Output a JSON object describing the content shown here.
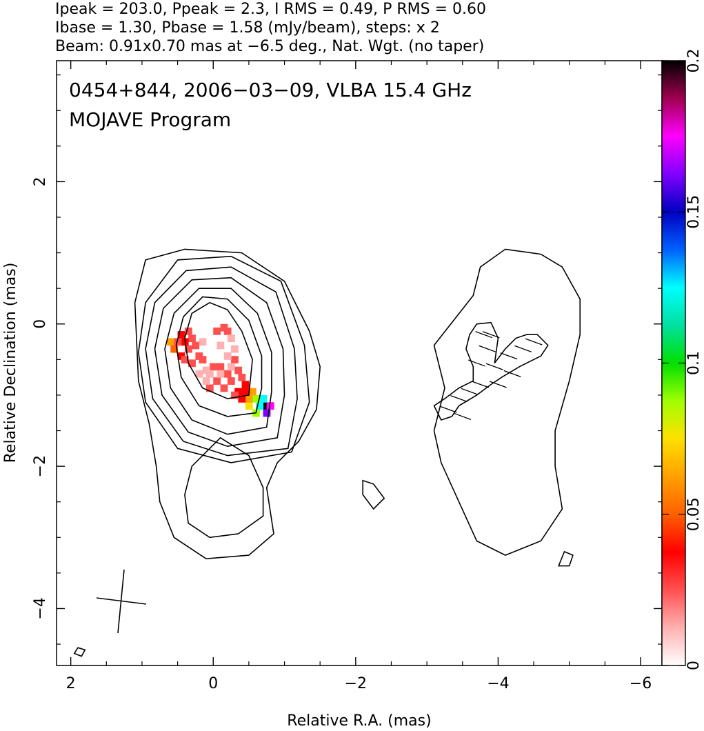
{
  "chart_data": {
    "type": "heatmap",
    "header_lines": [
      "Ipeak = 203.0, Ppeak = 2.3, I RMS = 0.49, P RMS = 0.60",
      "Ibase = 1.30, Pbase = 1.58 (mJy/beam), steps: x 2",
      "Beam: 0.91x0.70 mas at −6.5 deg., Nat. Wgt. (no taper)"
    ],
    "annotation_lines": [
      "0454+844, 2006−03−09, VLBA 15.4 GHz",
      "MOJAVE Program"
    ],
    "xlabel": "Relative R.A. (mas)",
    "ylabel": "Relative Declination (mas)",
    "xlim": [
      2.2,
      -6.3
    ],
    "ylim": [
      -4.8,
      3.7
    ],
    "x_ticks": [
      {
        "value": 2,
        "label": "2"
      },
      {
        "value": 0,
        "label": "0"
      },
      {
        "value": -2,
        "label": "−2"
      },
      {
        "value": -4,
        "label": "−4"
      },
      {
        "value": -6,
        "label": "−6"
      }
    ],
    "y_ticks": [
      {
        "value": 2,
        "label": "2"
      },
      {
        "value": 0,
        "label": "0"
      },
      {
        "value": -2,
        "label": "−2"
      },
      {
        "value": -4,
        "label": "−4"
      }
    ],
    "colorbar": {
      "range": [
        0,
        0.2
      ],
      "ticks": [
        {
          "value": 0,
          "label": "0"
        },
        {
          "value": 0.05,
          "label": "0.05"
        },
        {
          "value": 0.1,
          "label": "0.1"
        },
        {
          "value": 0.15,
          "label": "0.15"
        },
        {
          "value": 0.2,
          "label": "0.2"
        }
      ],
      "colors": [
        "#ffffff",
        "#ffb0b0",
        "#ff5050",
        "#ff0000",
        "#ff6000",
        "#ffa000",
        "#ffe000",
        "#a0ff00",
        "#00e000",
        "#00e0a0",
        "#00ffff",
        "#0060ff",
        "#0000c0",
        "#8000ff",
        "#ff00ff",
        "#a00050",
        "#000000"
      ]
    },
    "contours": [
      [
        [
          -0.5,
          -1.0
        ],
        [
          -0.2,
          -1.05
        ],
        [
          0.15,
          -0.9
        ],
        [
          0.35,
          -0.55
        ],
        [
          0.4,
          -0.2
        ],
        [
          0.3,
          0.15
        ],
        [
          0.05,
          0.3
        ],
        [
          -0.2,
          0.2
        ],
        [
          -0.4,
          -0.1
        ],
        [
          -0.55,
          -0.5
        ],
        [
          -0.5,
          -1.0
        ]
      ],
      [
        [
          -0.6,
          -1.25
        ],
        [
          -0.2,
          -1.3
        ],
        [
          0.2,
          -1.15
        ],
        [
          0.45,
          -0.75
        ],
        [
          0.52,
          -0.3
        ],
        [
          0.42,
          0.1
        ],
        [
          0.15,
          0.38
        ],
        [
          -0.2,
          0.35
        ],
        [
          -0.5,
          0.05
        ],
        [
          -0.68,
          -0.45
        ],
        [
          -0.68,
          -0.9
        ],
        [
          -0.6,
          -1.25
        ]
      ],
      [
        [
          -0.75,
          -1.45
        ],
        [
          -0.2,
          -1.55
        ],
        [
          0.3,
          -1.35
        ],
        [
          0.6,
          -0.9
        ],
        [
          0.68,
          -0.35
        ],
        [
          0.55,
          0.15
        ],
        [
          0.2,
          0.5
        ],
        [
          -0.25,
          0.5
        ],
        [
          -0.62,
          0.15
        ],
        [
          -0.82,
          -0.4
        ],
        [
          -0.82,
          -0.95
        ],
        [
          -0.75,
          -1.45
        ]
      ],
      [
        [
          -0.9,
          -1.6
        ],
        [
          -0.2,
          -1.72
        ],
        [
          0.35,
          -1.52
        ],
        [
          0.72,
          -1.0
        ],
        [
          0.82,
          -0.35
        ],
        [
          0.7,
          0.22
        ],
        [
          0.3,
          0.62
        ],
        [
          -0.25,
          0.65
        ],
        [
          -0.75,
          0.3
        ],
        [
          -0.98,
          -0.35
        ],
        [
          -1.0,
          -1.0
        ],
        [
          -0.9,
          -1.6
        ]
      ],
      [
        [
          -1.05,
          -1.75
        ],
        [
          -0.2,
          -1.85
        ],
        [
          0.42,
          -1.65
        ],
        [
          0.85,
          -1.05
        ],
        [
          0.95,
          -0.35
        ],
        [
          0.82,
          0.3
        ],
        [
          0.38,
          0.75
        ],
        [
          -0.25,
          0.8
        ],
        [
          -0.88,
          0.45
        ],
        [
          -1.14,
          -0.35
        ],
        [
          -1.18,
          -1.05
        ],
        [
          -1.05,
          -1.75
        ]
      ],
      [
        [
          -1.1,
          -1.8
        ],
        [
          -0.25,
          -1.95
        ],
        [
          0.5,
          -1.75
        ],
        [
          0.95,
          -1.1
        ],
        [
          1.05,
          -0.4
        ],
        [
          0.95,
          0.3
        ],
        [
          0.5,
          0.9
        ],
        [
          -0.25,
          0.95
        ],
        [
          -0.95,
          0.6
        ],
        [
          -1.28,
          -0.3
        ],
        [
          -1.35,
          -1.1
        ],
        [
          -1.1,
          -1.8
        ]
      ],
      [
        [
          1.05,
          -0.8
        ],
        [
          1.1,
          0.3
        ],
        [
          0.95,
          0.9
        ],
        [
          0.4,
          1.05
        ],
        [
          -0.4,
          1.0
        ],
        [
          -1.0,
          0.6
        ],
        [
          -1.35,
          -0.1
        ],
        [
          -1.5,
          -0.6
        ],
        [
          -1.45,
          -1.2
        ],
        [
          -1.2,
          -1.65
        ],
        [
          -0.9,
          -1.95
        ],
        [
          -0.75,
          -2.3
        ],
        [
          -0.85,
          -2.95
        ],
        [
          -0.5,
          -3.25
        ],
        [
          0.1,
          -3.3
        ],
        [
          0.55,
          -3.0
        ],
        [
          0.75,
          -2.5
        ],
        [
          0.8,
          -2.0
        ],
        [
          0.9,
          -1.4
        ],
        [
          1.05,
          -0.8
        ]
      ],
      [
        [
          -0.1,
          -1.6
        ],
        [
          -0.5,
          -1.85
        ],
        [
          -0.7,
          -2.3
        ],
        [
          -0.7,
          -2.7
        ],
        [
          -0.35,
          -2.95
        ],
        [
          0.05,
          -3.0
        ],
        [
          0.35,
          -2.8
        ],
        [
          0.4,
          -2.4
        ],
        [
          0.3,
          -2.0
        ],
        [
          -0.1,
          -1.6
        ]
      ],
      [
        [
          -3.2,
          -1.95
        ],
        [
          -3.1,
          -1.5
        ],
        [
          -3.25,
          -0.9
        ],
        [
          -3.1,
          -0.3
        ],
        [
          -3.65,
          0.4
        ],
        [
          -3.75,
          0.8
        ],
        [
          -4.1,
          1.05
        ],
        [
          -4.6,
          0.98
        ],
        [
          -4.9,
          0.8
        ],
        [
          -5.15,
          0.35
        ],
        [
          -5.15,
          -0.15
        ],
        [
          -5.0,
          -0.8
        ],
        [
          -4.8,
          -1.5
        ],
        [
          -4.8,
          -2.0
        ],
        [
          -4.9,
          -2.6
        ],
        [
          -4.6,
          -3.05
        ],
        [
          -4.1,
          -3.25
        ],
        [
          -3.7,
          -3.05
        ],
        [
          -3.45,
          -2.5
        ],
        [
          -3.2,
          -1.95
        ]
      ],
      [
        [
          -2.1,
          -2.2
        ],
        [
          -2.25,
          -2.25
        ],
        [
          -2.4,
          -2.45
        ],
        [
          -2.25,
          -2.6
        ],
        [
          -2.1,
          -2.4
        ],
        [
          -2.1,
          -2.2
        ]
      ],
      [
        [
          -4.93,
          -3.2
        ],
        [
          -5.05,
          -3.25
        ],
        [
          -5.0,
          -3.4
        ],
        [
          -4.85,
          -3.4
        ],
        [
          -4.93,
          -3.2
        ]
      ],
      [
        [
          1.9,
          -4.55
        ],
        [
          1.8,
          -4.58
        ],
        [
          1.85,
          -4.67
        ],
        [
          1.95,
          -4.63
        ],
        [
          1.9,
          -4.55
        ]
      ]
    ],
    "polarization_region": [
      [
        -3.1,
        -1.15
      ],
      [
        -3.25,
        -1.05
      ],
      [
        -3.45,
        -0.9
      ],
      [
        -3.65,
        -0.8
      ],
      [
        -3.65,
        -0.6
      ],
      [
        -3.55,
        -0.35
      ],
      [
        -3.6,
        -0.15
      ],
      [
        -3.7,
        0.0
      ],
      [
        -3.9,
        0.02
      ],
      [
        -4.0,
        -0.2
      ],
      [
        -3.95,
        -0.55
      ],
      [
        -4.1,
        -0.35
      ],
      [
        -4.25,
        -0.2
      ],
      [
        -4.4,
        -0.15
      ],
      [
        -4.55,
        -0.15
      ],
      [
        -4.7,
        -0.3
      ],
      [
        -4.6,
        -0.45
      ],
      [
        -4.3,
        -0.6
      ],
      [
        -4.05,
        -0.75
      ],
      [
        -3.9,
        -0.85
      ],
      [
        -3.7,
        -1.0
      ],
      [
        -3.45,
        -1.15
      ],
      [
        -3.35,
        -1.3
      ],
      [
        -3.2,
        -1.35
      ],
      [
        -3.1,
        -1.15
      ]
    ],
    "evpa_vectors": [
      [
        -3.3,
        -1.2
      ],
      [
        -3.45,
        -1.05
      ],
      [
        -3.6,
        -0.95
      ],
      [
        -3.5,
        -1.3
      ],
      [
        -3.75,
        -0.85
      ],
      [
        -3.8,
        -0.15
      ],
      [
        -3.85,
        -0.35
      ],
      [
        -3.7,
        -0.55
      ],
      [
        -3.95,
        -0.6
      ],
      [
        -4.15,
        -0.45
      ],
      [
        -4.35,
        -0.35
      ],
      [
        -4.5,
        -0.25
      ],
      [
        -4.2,
        -0.7
      ],
      [
        -4.0,
        -0.85
      ],
      [
        -3.9,
        -0.15
      ]
    ],
    "fpol_pixels": [
      {
        "x": -0.7,
        "y": -1.15,
        "value": 0.2
      },
      {
        "x": -0.8,
        "y": -1.15,
        "value": 0.17
      },
      {
        "x": -0.75,
        "y": -1.25,
        "value": 0.16
      },
      {
        "x": -0.7,
        "y": -1.05,
        "value": 0.13
      },
      {
        "x": -0.65,
        "y": -1.15,
        "value": 0.12
      },
      {
        "x": -0.6,
        "y": -1.25,
        "value": 0.09
      },
      {
        "x": -0.6,
        "y": -1.05,
        "value": 0.085
      },
      {
        "x": -0.55,
        "y": -0.95,
        "value": 0.065
      },
      {
        "x": -0.5,
        "y": -1.15,
        "value": 0.075
      },
      {
        "x": -0.5,
        "y": -1.05,
        "value": 0.06
      },
      {
        "x": 0.6,
        "y": -0.25,
        "value": 0.06
      },
      {
        "x": 0.55,
        "y": -0.35,
        "value": 0.05
      },
      {
        "x": -0.45,
        "y": -0.95,
        "value": 0.04
      },
      {
        "x": -0.45,
        "y": -0.85,
        "value": 0.035
      },
      {
        "x": -0.4,
        "y": -1.05,
        "value": 0.035
      },
      {
        "x": -0.4,
        "y": -0.75,
        "value": 0.03
      },
      {
        "x": -0.35,
        "y": -0.95,
        "value": 0.032
      },
      {
        "x": -0.35,
        "y": -0.65,
        "value": 0.028
      },
      {
        "x": -0.3,
        "y": -1.0,
        "value": 0.03
      },
      {
        "x": -0.3,
        "y": -0.5,
        "value": 0.027
      },
      {
        "x": -0.25,
        "y": -0.8,
        "value": 0.026
      },
      {
        "x": -0.2,
        "y": -0.7,
        "value": 0.025
      },
      {
        "x": -0.2,
        "y": -0.1,
        "value": 0.024
      },
      {
        "x": -0.15,
        "y": -0.9,
        "value": 0.026
      },
      {
        "x": -0.1,
        "y": -0.6,
        "value": 0.022
      },
      {
        "x": -0.05,
        "y": -0.8,
        "value": 0.021
      },
      {
        "x": 0.0,
        "y": -0.6,
        "value": 0.02
      },
      {
        "x": 0.05,
        "y": -0.7,
        "value": 0.018
      },
      {
        "x": 0.1,
        "y": -0.65,
        "value": 0.017
      },
      {
        "x": 0.15,
        "y": -0.5,
        "value": 0.019
      },
      {
        "x": 0.2,
        "y": -0.45,
        "value": 0.02
      },
      {
        "x": 0.25,
        "y": -0.3,
        "value": 0.022
      },
      {
        "x": 0.3,
        "y": -0.2,
        "value": 0.025
      },
      {
        "x": 0.35,
        "y": -0.35,
        "value": 0.03
      },
      {
        "x": 0.4,
        "y": -0.25,
        "value": 0.032
      },
      {
        "x": 0.45,
        "y": -0.15,
        "value": 0.035
      },
      {
        "x": 0.45,
        "y": -0.45,
        "value": 0.033
      },
      {
        "x": 0.4,
        "y": -0.5,
        "value": 0.03
      },
      {
        "x": 0.3,
        "y": -0.55,
        "value": 0.027
      },
      {
        "x": -0.05,
        "y": -0.1,
        "value": 0.022
      },
      {
        "x": -0.15,
        "y": -0.05,
        "value": 0.02
      },
      {
        "x": 0.05,
        "y": -0.9,
        "value": 0.02
      },
      {
        "x": -0.25,
        "y": -0.2,
        "value": 0.012
      },
      {
        "x": -0.3,
        "y": -0.35,
        "value": 0.01
      },
      {
        "x": -0.1,
        "y": -0.3,
        "value": 0.008
      },
      {
        "x": 0.15,
        "y": -0.25,
        "value": 0.015
      },
      {
        "x": 0.1,
        "y": -0.8,
        "value": 0.014
      },
      {
        "x": -0.2,
        "y": -0.45,
        "value": 0.014
      },
      {
        "x": -0.25,
        "y": -0.6,
        "value": 0.016
      },
      {
        "x": -0.1,
        "y": -0.7,
        "value": 0.012
      },
      {
        "x": 0.2,
        "y": -0.7,
        "value": 0.016
      },
      {
        "x": 0.35,
        "y": -0.1,
        "value": 0.024
      },
      {
        "x": 0.5,
        "y": -0.25,
        "value": 0.028
      }
    ]
  }
}
